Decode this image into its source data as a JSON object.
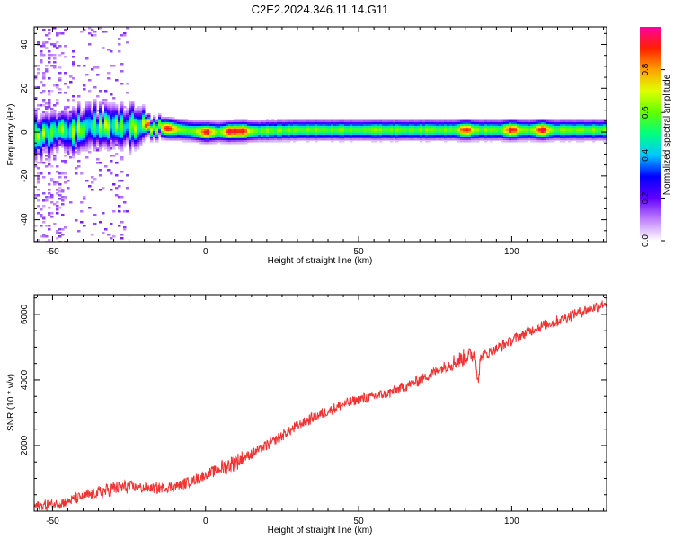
{
  "title": "C2E2.2024.346.11.14.G11",
  "chart_data": [
    {
      "type": "heatmap",
      "xlabel": "Height of straight line (km)",
      "ylabel": "Frequency (Hz)",
      "xlim": [
        -56,
        131
      ],
      "ylim": [
        -50,
        48
      ],
      "x_ticks": [
        -50,
        0,
        50,
        100
      ],
      "y_ticks": [
        -40,
        -20,
        0,
        20,
        40
      ],
      "colorbar": {
        "label": "Normalized spectral amplitude",
        "range": [
          0,
          1
        ],
        "ticks": [
          "0.0",
          "0.2",
          "0.4",
          "0.6",
          "0.8"
        ],
        "colormap": [
          "#ffffff",
          "#c080ff",
          "#6000ff",
          "#0000ff",
          "#00c8ff",
          "#00ff80",
          "#60ff00",
          "#e0ff00",
          "#ffa000",
          "#ff2000",
          "#ff00a0"
        ]
      },
      "band": {
        "center_frequency_hz": [
          [
            -56,
            -2
          ],
          [
            -40,
            2
          ],
          [
            -25,
            3
          ],
          [
            -15,
            2
          ],
          [
            0,
            0
          ],
          [
            30,
            1
          ],
          [
            80,
            1
          ],
          [
            131,
            1
          ]
        ],
        "hot_spots_km": [
          -20,
          -12,
          0,
          8,
          12,
          85,
          100,
          110
        ]
      }
    },
    {
      "type": "line",
      "xlabel": "Height of straight line (km)",
      "ylabel": "SNR (10 * v/v)",
      "xlim": [
        -56,
        131
      ],
      "ylim": [
        0,
        6600
      ],
      "x_ticks": [
        -50,
        0,
        50,
        100
      ],
      "y_ticks": [
        2000,
        4000,
        6000
      ],
      "series": [
        {
          "color": "#ee3333",
          "x": [
            -56,
            -50,
            -45,
            -40,
            -35,
            -30,
            -25,
            -20,
            -15,
            -10,
            -5,
            0,
            5,
            10,
            15,
            20,
            25,
            30,
            35,
            40,
            45,
            50,
            55,
            60,
            65,
            70,
            75,
            80,
            85,
            88,
            89,
            90,
            95,
            100,
            105,
            110,
            115,
            120,
            125,
            131
          ],
          "values": [
            150,
            200,
            300,
            450,
            550,
            700,
            750,
            700,
            700,
            750,
            900,
            1100,
            1300,
            1500,
            1750,
            2000,
            2300,
            2600,
            2850,
            3050,
            3250,
            3400,
            3500,
            3600,
            3800,
            4000,
            4250,
            4500,
            4700,
            4800,
            4050,
            4700,
            4950,
            5200,
            5450,
            5650,
            5800,
            6000,
            6150,
            6350
          ]
        }
      ]
    }
  ]
}
